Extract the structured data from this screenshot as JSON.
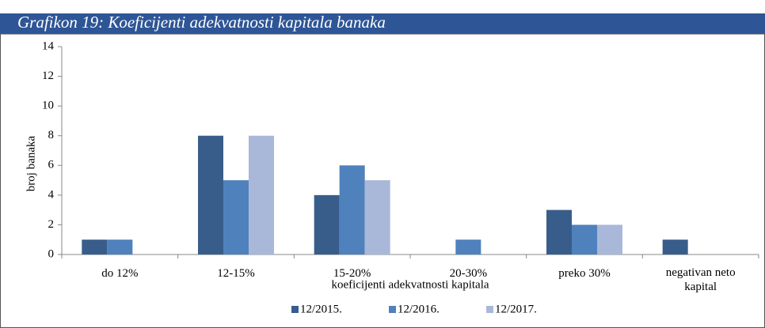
{
  "chart_data": {
    "type": "bar",
    "title": "Grafikon 19:  Koeficijenti adekvatnosti kapitala banaka",
    "x_label": "koeficijenti adekvatnosti kapitala",
    "y_label": "broj banaka",
    "categories": [
      "do 12%",
      "12-15%",
      "15-20%",
      "20-30%",
      "preko 30%",
      "negativan neto kapital"
    ],
    "series": [
      {
        "name": "12/2015.",
        "color": "#385d8a",
        "values": [
          1,
          8,
          4,
          0,
          3,
          1
        ]
      },
      {
        "name": "12/2016.",
        "color": "#4f81bd",
        "values": [
          1,
          5,
          6,
          1,
          2,
          0
        ]
      },
      {
        "name": "12/2017.",
        "color": "#a9b8d8",
        "values": [
          0,
          8,
          5,
          0,
          2,
          0
        ]
      }
    ],
    "ylim": [
      0,
      14
    ],
    "yticks": [
      0,
      2,
      4,
      6,
      8,
      10,
      12,
      14
    ]
  }
}
